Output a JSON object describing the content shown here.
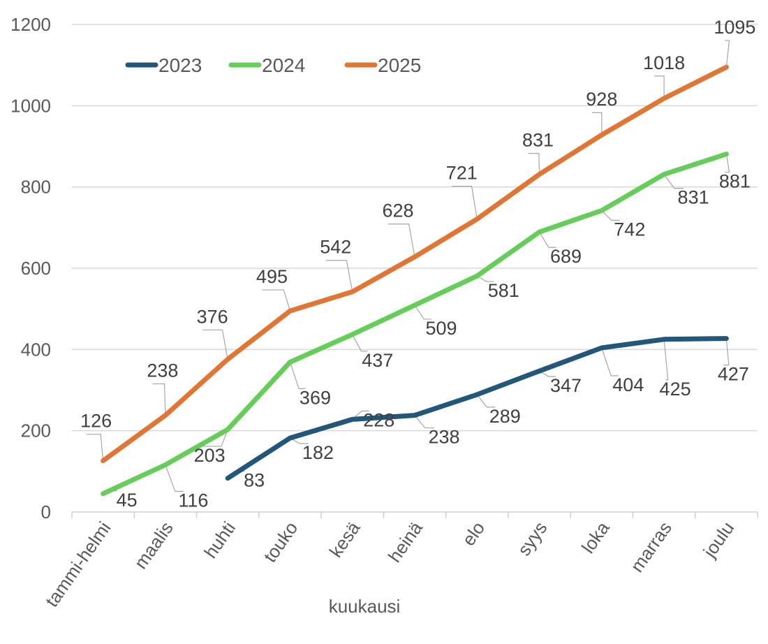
{
  "chart_data": {
    "type": "line",
    "title": "",
    "xlabel": "kuukausi",
    "ylabel": "",
    "ylim": [
      0,
      1200
    ],
    "yticks": [
      0,
      200,
      400,
      600,
      800,
      1000,
      1200
    ],
    "grid": true,
    "legend_position": "top-left",
    "categories": [
      "tammi-helmi",
      "maalis",
      "huhti",
      "touko",
      "kesä",
      "heinä",
      "elo",
      "syys",
      "loka",
      "marras",
      "joulu"
    ],
    "series": [
      {
        "name": "2023",
        "color": "#22577a",
        "values": [
          null,
          null,
          83,
          182,
          228,
          238,
          289,
          347,
          404,
          425,
          427
        ]
      },
      {
        "name": "2024",
        "color": "#66cc5a",
        "values": [
          45,
          116,
          203,
          369,
          437,
          509,
          581,
          689,
          742,
          831,
          881
        ]
      },
      {
        "name": "2025",
        "color": "#e07636",
        "values": [
          126,
          238,
          376,
          495,
          542,
          628,
          721,
          831,
          928,
          1018,
          1095
        ]
      }
    ]
  }
}
